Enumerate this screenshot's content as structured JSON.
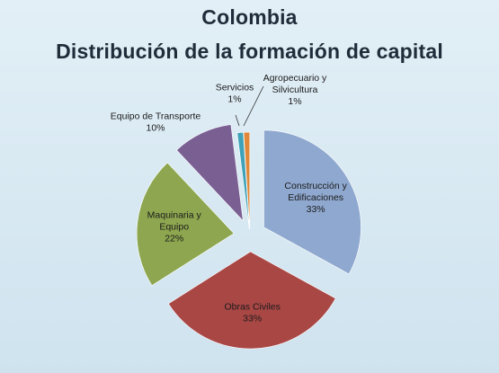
{
  "chart_data": {
    "type": "pie",
    "title": "Colombia",
    "subtitle": "Distribución de la formación de capital",
    "slices": [
      {
        "name": "Construcción y Edificaciones",
        "lines": [
          "Construcción y",
          "Edificaciones"
        ],
        "value": 33,
        "label": "33%",
        "color": "#8fa8cf"
      },
      {
        "name": "Obras Civiles",
        "lines": [
          "Obras Civiles"
        ],
        "value": 33,
        "label": "33%",
        "color": "#a94745"
      },
      {
        "name": "Maquinaria y Equipo",
        "lines": [
          "Maquinaria y",
          "Equipo"
        ],
        "value": 22,
        "label": "22%",
        "color": "#8da64f"
      },
      {
        "name": "Equipo de Transporte",
        "lines": [
          "Equipo de Transporte"
        ],
        "value": 10,
        "label": "10%",
        "color": "#7a5f93"
      },
      {
        "name": "Servicios",
        "lines": [
          "Servicios"
        ],
        "value": 1,
        "label": "1%",
        "color": "#3fa2b8"
      },
      {
        "name": "Agropecuario y Silvicultura",
        "lines": [
          "Agropecuario y",
          "Silvicultura"
        ],
        "value": 1,
        "label": "1%",
        "color": "#e0873a"
      }
    ],
    "exploded": true,
    "legend": "none",
    "data_labels": "category name and percent"
  }
}
